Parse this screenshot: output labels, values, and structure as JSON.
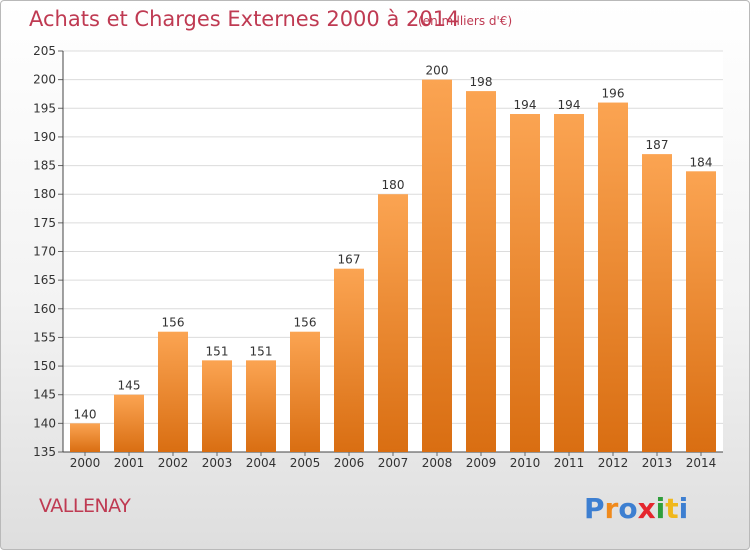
{
  "header": {
    "title": "Achats et Charges Externes 2000 à 2014",
    "subtitle": "(en milliers d'€)"
  },
  "footer": {
    "commune": "VALLENAY",
    "brand": "Proxiti"
  },
  "colors": {
    "accent_text": "#bf3a52",
    "bar_light": "#fba452",
    "bar_dark": "#d96e12"
  },
  "chart_data": {
    "type": "bar",
    "categories": [
      "2000",
      "2001",
      "2002",
      "2003",
      "2004",
      "2005",
      "2006",
      "2007",
      "2008",
      "2009",
      "2010",
      "2011",
      "2012",
      "2013",
      "2014"
    ],
    "values": [
      140,
      145,
      156,
      151,
      151,
      156,
      167,
      180,
      200,
      198,
      194,
      194,
      196,
      187,
      184
    ],
    "title": "Achats et Charges Externes 2000 à 2014",
    "subtitle": "(en milliers d'€)",
    "ylim": [
      135,
      205
    ],
    "yticks": [
      135,
      140,
      145,
      150,
      155,
      160,
      165,
      170,
      175,
      180,
      185,
      190,
      195,
      200,
      205
    ],
    "grid": true,
    "data_labels": true
  }
}
